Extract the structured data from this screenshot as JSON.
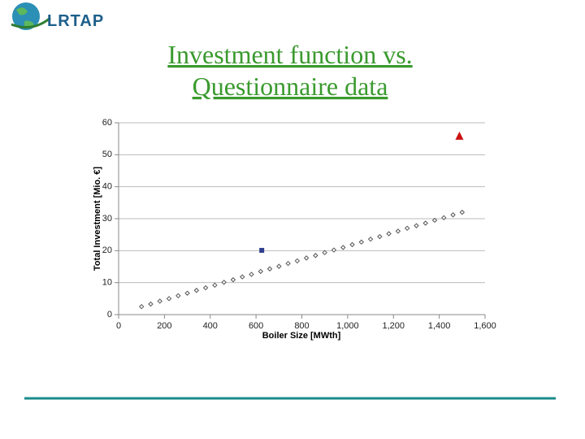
{
  "header": {
    "logo_text": "LRTAP",
    "title_lines": [
      "Investment function vs.",
      "Questionnaire data"
    ]
  },
  "chart_data": {
    "type": "scatter",
    "xlabel": "Boiler Size [MWth]",
    "ylabel": "Total Investment [Mio. €]",
    "xlim": [
      0,
      1600
    ],
    "xticks": [
      0,
      200,
      400,
      600,
      800,
      {
        "value": 1000,
        "label": "1,000"
      },
      {
        "value": 1200,
        "label": "1,200"
      },
      {
        "value": 1400,
        "label": "1,400"
      },
      {
        "value": 1600,
        "label": "1,600"
      }
    ],
    "ylim": [
      0,
      60
    ],
    "yticks": [
      0,
      10,
      20,
      30,
      40,
      50,
      60
    ],
    "grid": true,
    "series": [
      {
        "color": "#555555",
        "marker": "diamond",
        "x": [
          100,
          140,
          180,
          220,
          260,
          300,
          340,
          380,
          420,
          460,
          500,
          540,
          580,
          620,
          660,
          700,
          740,
          780,
          820,
          860,
          900,
          940,
          980,
          1020,
          1060,
          1100,
          1140,
          1180,
          1220,
          1260,
          1300,
          1340,
          1380,
          1420,
          1460,
          1500
        ],
        "values": [
          2.5,
          3.3,
          4.2,
          5.0,
          5.9,
          6.7,
          7.6,
          8.4,
          9.2,
          10.1,
          10.9,
          11.8,
          12.6,
          13.5,
          14.3,
          15.1,
          16.0,
          16.8,
          17.7,
          18.5,
          19.4,
          20.2,
          21.0,
          21.9,
          22.7,
          23.6,
          24.4,
          25.3,
          26.1,
          27.0,
          27.8,
          28.6,
          29.5,
          30.3,
          31.2,
          32.0
        ]
      },
      {
        "color": "#2e3f8f",
        "marker": "square",
        "x": [
          625
        ],
        "values": [
          20.1
        ]
      },
      {
        "color": "#cc1111",
        "marker": "triangle",
        "x": [
          1488
        ],
        "values": [
          55.7
        ]
      }
    ]
  }
}
